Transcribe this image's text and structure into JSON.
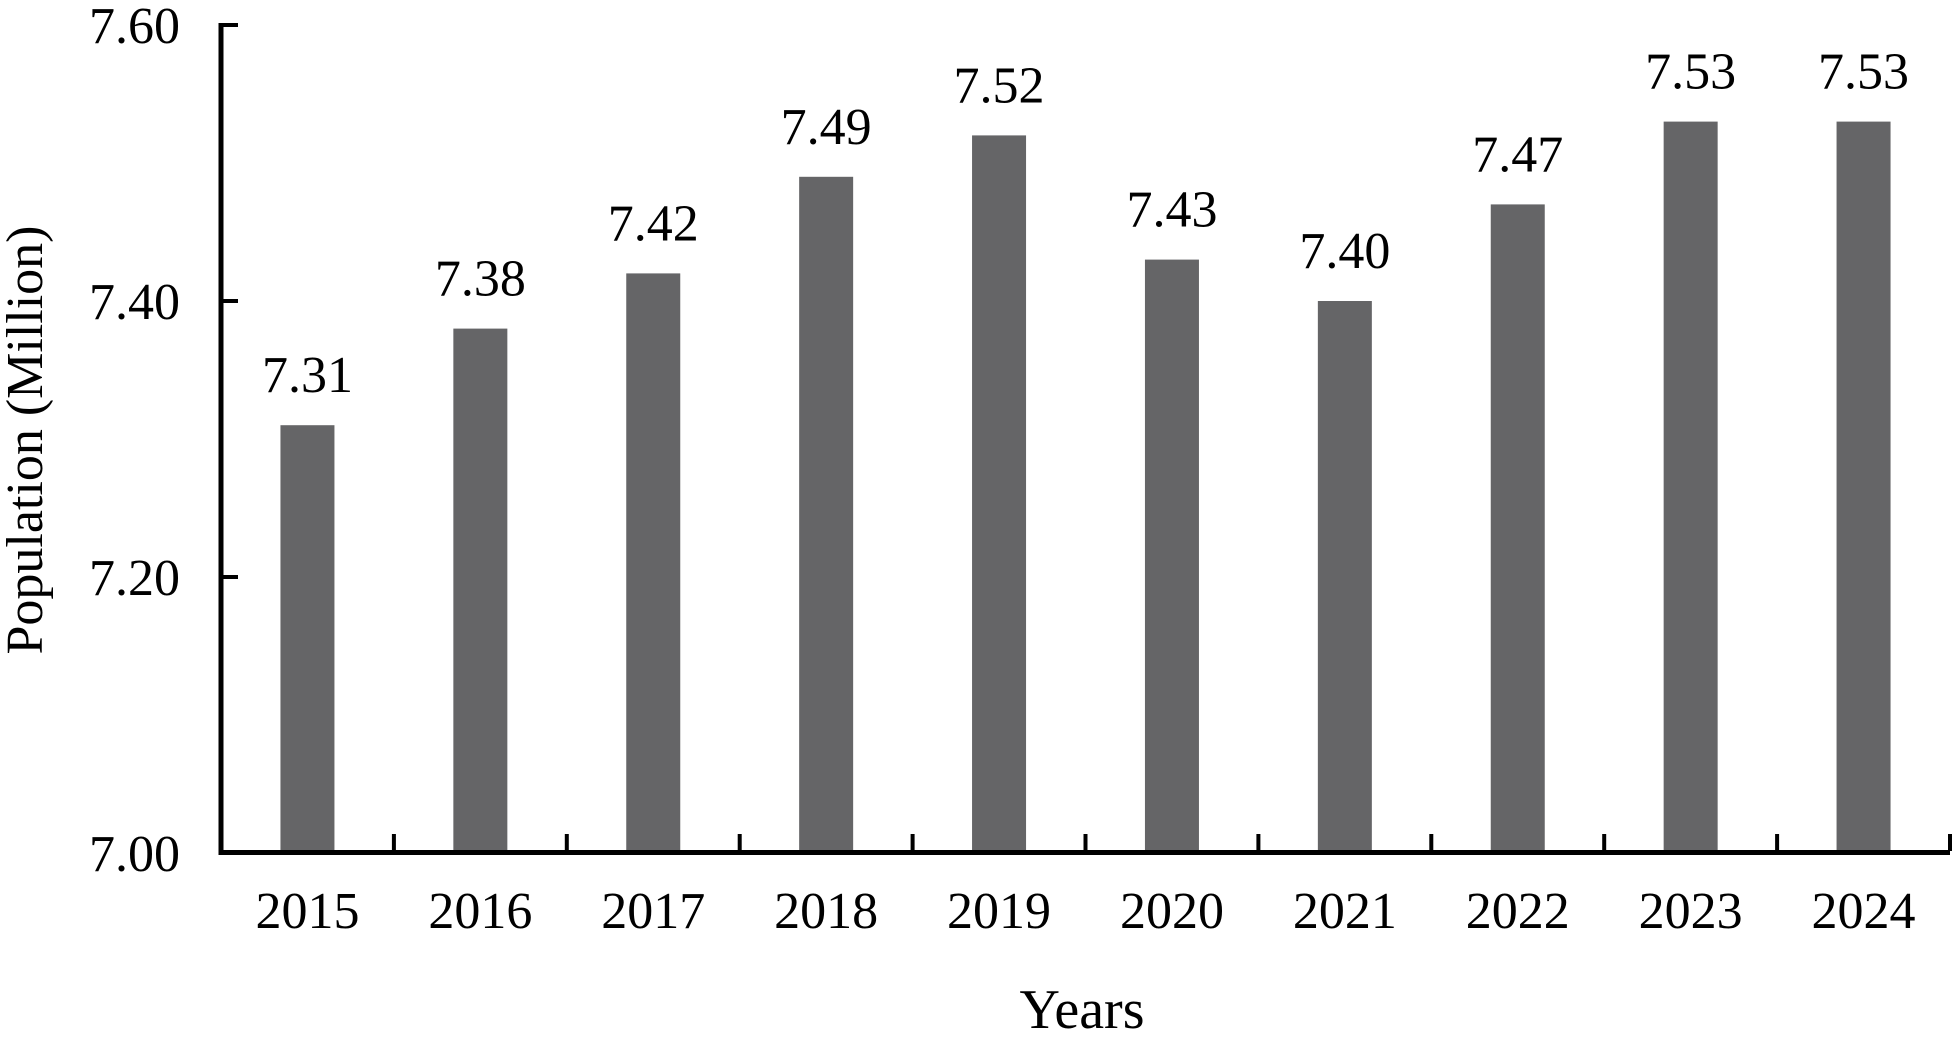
{
  "chart_data": {
    "type": "bar",
    "title": "",
    "xlabel": "Years",
    "ylabel": "Population (Million)",
    "categories": [
      "2015",
      "2016",
      "2017",
      "2018",
      "2019",
      "2020",
      "2021",
      "2022",
      "2023",
      "2024"
    ],
    "values": [
      7.31,
      7.38,
      7.42,
      7.49,
      7.52,
      7.43,
      7.4,
      7.47,
      7.53,
      7.53
    ],
    "value_labels": [
      "7.31",
      "7.38",
      "7.42",
      "7.49",
      "7.52",
      "7.43",
      "7.40",
      "7.47",
      "7.53",
      "7.53"
    ],
    "ylim": [
      7.0,
      7.6
    ],
    "yticks": [
      7.0,
      7.2,
      7.4,
      7.6
    ],
    "ytick_labels": [
      "7.00",
      "7.20",
      "7.40",
      "7.60"
    ],
    "grid": false,
    "legend": "none",
    "bar_color": "#656567",
    "axis_color": "#000000",
    "text_color": "#000000",
    "background_color": "#ffffff"
  }
}
